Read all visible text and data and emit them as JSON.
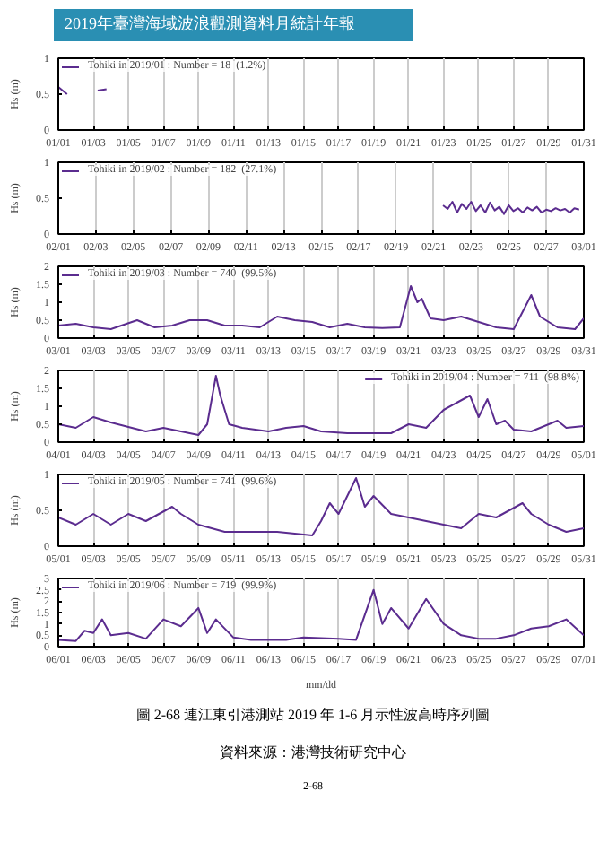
{
  "chart_data": [
    {
      "type": "line",
      "title": "2019年臺灣海域波浪觀測資料月統計年報",
      "ylabel": "Hs (m)",
      "legend": "top left",
      "grid": "x",
      "xlim": [
        "2019-01-01",
        "2019-01-31"
      ],
      "ylim": [
        0,
        1
      ],
      "yticks": [
        0,
        0.5,
        1
      ],
      "xticks": [
        {
          "value": "2019-01-01",
          "label": "01/01"
        },
        {
          "value": "2019-01-03",
          "label": "01/03"
        },
        {
          "value": "2019-01-05",
          "label": "01/05"
        },
        {
          "value": "2019-01-07",
          "label": "01/07"
        },
        {
          "value": "2019-01-09",
          "label": "01/09"
        },
        {
          "value": "2019-01-11",
          "label": "01/11"
        },
        {
          "value": "2019-01-13",
          "label": "01/13"
        },
        {
          "value": "2019-01-15",
          "label": "01/15"
        },
        {
          "value": "2019-01-17",
          "label": "01/17"
        },
        {
          "value": "2019-01-19",
          "label": "01/19"
        },
        {
          "value": "2019-01-21",
          "label": "01/21"
        },
        {
          "value": "2019-01-23",
          "label": "01/23"
        },
        {
          "value": "2019-01-25",
          "label": "01/25"
        },
        {
          "value": "2019-01-27",
          "label": "01/27"
        },
        {
          "value": "2019-01-29",
          "label": "01/29"
        },
        {
          "value": "2019-01-31",
          "label": "01/31"
        }
      ],
      "series": [
        {
          "name": "Tohiki in 2019/01 : Number = 18  (1.2%)",
          "color": "#5b2c8f",
          "x": [
            "2019-01-01T00:00",
            "2019-01-01T12:00",
            "2019-01-02T00:00",
            "2019-01-03T06:00",
            "2019-01-03T18:00"
          ],
          "values": [
            0.6,
            0.5,
            null,
            0.55,
            0.57
          ]
        }
      ]
    },
    {
      "type": "line",
      "ylabel": "Hs (m)",
      "legend": "top left",
      "grid": "x",
      "xlim": [
        "2019-02-01",
        "2019-03-01"
      ],
      "ylim": [
        0,
        1
      ],
      "yticks": [
        0,
        0.5,
        1
      ],
      "xticks": [
        {
          "value": "2019-02-01",
          "label": "02/01"
        },
        {
          "value": "2019-02-03",
          "label": "02/03"
        },
        {
          "value": "2019-02-05",
          "label": "02/05"
        },
        {
          "value": "2019-02-07",
          "label": "02/07"
        },
        {
          "value": "2019-02-09",
          "label": "02/09"
        },
        {
          "value": "2019-02-11",
          "label": "02/11"
        },
        {
          "value": "2019-02-13",
          "label": "02/13"
        },
        {
          "value": "2019-02-15",
          "label": "02/15"
        },
        {
          "value": "2019-02-17",
          "label": "02/17"
        },
        {
          "value": "2019-02-19",
          "label": "02/19"
        },
        {
          "value": "2019-02-21",
          "label": "02/21"
        },
        {
          "value": "2019-02-23",
          "label": "02/23"
        },
        {
          "value": "2019-02-25",
          "label": "02/25"
        },
        {
          "value": "2019-02-27",
          "label": "02/27"
        },
        {
          "value": "2019-03-01",
          "label": "03/01"
        }
      ],
      "series": [
        {
          "name": "Tohiki in 2019/02 : Number = 182  (27.1%)",
          "color": "#5b2c8f",
          "x": [
            "2019-02-21T12:00",
            "2019-02-21T18:00",
            "2019-02-22T00:00",
            "2019-02-22T06:00",
            "2019-02-22T12:00",
            "2019-02-22T18:00",
            "2019-02-23T00:00",
            "2019-02-23T06:00",
            "2019-02-23T12:00",
            "2019-02-23T18:00",
            "2019-02-24T00:00",
            "2019-02-24T06:00",
            "2019-02-24T12:00",
            "2019-02-24T18:00",
            "2019-02-25T00:00",
            "2019-02-25T06:00",
            "2019-02-25T12:00",
            "2019-02-25T18:00",
            "2019-02-26T00:00",
            "2019-02-26T06:00",
            "2019-02-26T12:00",
            "2019-02-26T18:00",
            "2019-02-27T00:00",
            "2019-02-27T06:00",
            "2019-02-27T12:00",
            "2019-02-27T18:00",
            "2019-02-28T00:00",
            "2019-02-28T06:00",
            "2019-02-28T12:00",
            "2019-02-28T18:00"
          ],
          "values": [
            0.4,
            0.35,
            0.45,
            0.3,
            0.42,
            0.35,
            0.45,
            0.32,
            0.4,
            0.3,
            0.44,
            0.33,
            0.38,
            0.28,
            0.4,
            0.32,
            0.36,
            0.3,
            0.37,
            0.33,
            0.38,
            0.3,
            0.34,
            0.32,
            0.36,
            0.33,
            0.35,
            0.3,
            0.36,
            0.34
          ]
        }
      ]
    },
    {
      "type": "line",
      "ylabel": "Hs (m)",
      "legend": "top left",
      "grid": "x",
      "xlim": [
        "2019-03-01",
        "2019-03-31"
      ],
      "ylim": [
        0,
        2
      ],
      "yticks": [
        0,
        0.5,
        1,
        1.5,
        2
      ],
      "xticks": [
        {
          "value": "2019-03-01",
          "label": "03/01"
        },
        {
          "value": "2019-03-03",
          "label": "03/03"
        },
        {
          "value": "2019-03-05",
          "label": "03/05"
        },
        {
          "value": "2019-03-07",
          "label": "03/07"
        },
        {
          "value": "2019-03-09",
          "label": "03/09"
        },
        {
          "value": "2019-03-11",
          "label": "03/11"
        },
        {
          "value": "2019-03-13",
          "label": "03/13"
        },
        {
          "value": "2019-03-15",
          "label": "03/15"
        },
        {
          "value": "2019-03-17",
          "label": "03/17"
        },
        {
          "value": "2019-03-19",
          "label": "03/19"
        },
        {
          "value": "2019-03-21",
          "label": "03/21"
        },
        {
          "value": "2019-03-23",
          "label": "03/23"
        },
        {
          "value": "2019-03-25",
          "label": "03/25"
        },
        {
          "value": "2019-03-27",
          "label": "03/27"
        },
        {
          "value": "2019-03-29",
          "label": "03/29"
        },
        {
          "value": "2019-03-31",
          "label": "03/31"
        }
      ],
      "series": [
        {
          "name": "Tohiki in 2019/03 : Number = 740  (99.5%)",
          "color": "#5b2c8f",
          "x": [
            "2019-03-01T00:00",
            "2019-03-02T00:00",
            "2019-03-03T00:00",
            "2019-03-04T00:00",
            "2019-03-05T12:00",
            "2019-03-06T12:00",
            "2019-03-07T12:00",
            "2019-03-08T12:00",
            "2019-03-09T12:00",
            "2019-03-10T12:00",
            "2019-03-11T12:00",
            "2019-03-12T12:00",
            "2019-03-13T12:00",
            "2019-03-14T12:00",
            "2019-03-15T12:00",
            "2019-03-16T12:00",
            "2019-03-17T12:00",
            "2019-03-18T12:00",
            "2019-03-19T12:00",
            "2019-03-20T12:00",
            "2019-03-21T03:00",
            "2019-03-21T12:00",
            "2019-03-21T18:00",
            "2019-03-22T06:00",
            "2019-03-23T00:00",
            "2019-03-24T00:00",
            "2019-03-25T00:00",
            "2019-03-26T00:00",
            "2019-03-27T00:00",
            "2019-03-28T00:00",
            "2019-03-28T12:00",
            "2019-03-29T12:00",
            "2019-03-30T12:00",
            "2019-03-31T00:00"
          ],
          "values": [
            0.35,
            0.4,
            0.3,
            0.25,
            0.5,
            0.3,
            0.35,
            0.5,
            0.5,
            0.35,
            0.35,
            0.3,
            0.6,
            0.5,
            0.45,
            0.3,
            0.4,
            0.3,
            0.28,
            0.3,
            1.45,
            1.0,
            1.1,
            0.55,
            0.5,
            0.6,
            0.45,
            0.3,
            0.25,
            1.2,
            0.6,
            0.3,
            0.25,
            0.55
          ]
        }
      ]
    },
    {
      "type": "line",
      "ylabel": "Hs (m)",
      "legend": "top right",
      "grid": "x",
      "xlim": [
        "2019-04-01",
        "2019-05-01"
      ],
      "ylim": [
        0,
        2
      ],
      "yticks": [
        0,
        0.5,
        1,
        1.5,
        2
      ],
      "xticks": [
        {
          "value": "2019-04-01",
          "label": "04/01"
        },
        {
          "value": "2019-04-03",
          "label": "04/03"
        },
        {
          "value": "2019-04-05",
          "label": "04/05"
        },
        {
          "value": "2019-04-07",
          "label": "04/07"
        },
        {
          "value": "2019-04-09",
          "label": "04/09"
        },
        {
          "value": "2019-04-11",
          "label": "04/11"
        },
        {
          "value": "2019-04-13",
          "label": "04/13"
        },
        {
          "value": "2019-04-15",
          "label": "04/15"
        },
        {
          "value": "2019-04-17",
          "label": "04/17"
        },
        {
          "value": "2019-04-19",
          "label": "04/19"
        },
        {
          "value": "2019-04-21",
          "label": "04/21"
        },
        {
          "value": "2019-04-23",
          "label": "04/23"
        },
        {
          "value": "2019-04-25",
          "label": "04/25"
        },
        {
          "value": "2019-04-27",
          "label": "04/27"
        },
        {
          "value": "2019-04-29",
          "label": "04/29"
        },
        {
          "value": "2019-05-01",
          "label": "05/01"
        }
      ],
      "series": [
        {
          "name": "Tohiki in 2019/04 : Number = 711  (98.8%)",
          "color": "#5b2c8f",
          "x": [
            "2019-04-01T00:00",
            "2019-04-02T00:00",
            "2019-04-03T00:00",
            "2019-04-04T00:00",
            "2019-04-06T00:00",
            "2019-04-07T00:00",
            "2019-04-09T00:00",
            "2019-04-09T12:00",
            "2019-04-10T00:00",
            "2019-04-10T06:00",
            "2019-04-10T18:00",
            "2019-04-11T12:00",
            "2019-04-13T00:00",
            "2019-04-14T00:00",
            "2019-04-15T00:00",
            "2019-04-16T00:00",
            "2019-04-17T12:00",
            "2019-04-20T00:00",
            "2019-04-21T00:00",
            "2019-04-22T00:00",
            "2019-04-23T00:00",
            "2019-04-24T12:00",
            "2019-04-25T00:00",
            "2019-04-25T12:00",
            "2019-04-26T00:00",
            "2019-04-26T12:00",
            "2019-04-27T00:00",
            "2019-04-28T00:00",
            "2019-04-29T12:00",
            "2019-04-30T00:00",
            "2019-05-01T00:00"
          ],
          "values": [
            0.5,
            0.4,
            0.7,
            0.55,
            0.3,
            0.4,
            0.2,
            0.5,
            1.85,
            1.3,
            0.5,
            0.4,
            0.3,
            0.4,
            0.45,
            0.3,
            0.25,
            0.25,
            0.5,
            0.4,
            0.9,
            1.3,
            0.7,
            1.2,
            0.5,
            0.6,
            0.35,
            0.3,
            0.6,
            0.4,
            0.45
          ]
        }
      ]
    },
    {
      "type": "line",
      "ylabel": "Hs (m)",
      "legend": "top left",
      "grid": "x",
      "xlim": [
        "2019-05-01",
        "2019-05-31"
      ],
      "ylim": [
        0,
        1
      ],
      "yticks": [
        0,
        0.5,
        1
      ],
      "xticks": [
        {
          "value": "2019-05-01",
          "label": "05/01"
        },
        {
          "value": "2019-05-03",
          "label": "05/03"
        },
        {
          "value": "2019-05-05",
          "label": "05/05"
        },
        {
          "value": "2019-05-07",
          "label": "05/07"
        },
        {
          "value": "2019-05-09",
          "label": "05/09"
        },
        {
          "value": "2019-05-11",
          "label": "05/11"
        },
        {
          "value": "2019-05-13",
          "label": "05/13"
        },
        {
          "value": "2019-05-15",
          "label": "05/15"
        },
        {
          "value": "2019-05-17",
          "label": "05/17"
        },
        {
          "value": "2019-05-19",
          "label": "05/19"
        },
        {
          "value": "2019-05-21",
          "label": "05/21"
        },
        {
          "value": "2019-05-23",
          "label": "05/23"
        },
        {
          "value": "2019-05-25",
          "label": "05/25"
        },
        {
          "value": "2019-05-27",
          "label": "05/27"
        },
        {
          "value": "2019-05-29",
          "label": "05/29"
        },
        {
          "value": "2019-05-31",
          "label": "05/31"
        }
      ],
      "series": [
        {
          "name": "Tohiki in 2019/05 : Number = 741  (99.6%)",
          "color": "#5b2c8f",
          "x": [
            "2019-05-01T00:00",
            "2019-05-02T00:00",
            "2019-05-03T00:00",
            "2019-05-04T00:00",
            "2019-05-05T00:00",
            "2019-05-06T00:00",
            "2019-05-07T12:00",
            "2019-05-08T00:00",
            "2019-05-09T00:00",
            "2019-05-10T12:00",
            "2019-05-12T00:00",
            "2019-05-13T12:00",
            "2019-05-15T12:00",
            "2019-05-16T00:00",
            "2019-05-16T12:00",
            "2019-05-17T00:00",
            "2019-05-18T00:00",
            "2019-05-18T12:00",
            "2019-05-19T00:00",
            "2019-05-20T00:00",
            "2019-05-21T00:00",
            "2019-05-23T00:00",
            "2019-05-24T00:00",
            "2019-05-25T00:00",
            "2019-05-26T00:00",
            "2019-05-27T12:00",
            "2019-05-28T00:00",
            "2019-05-29T00:00",
            "2019-05-30T00:00",
            "2019-05-31T00:00"
          ],
          "values": [
            0.4,
            0.3,
            0.45,
            0.3,
            0.45,
            0.35,
            0.55,
            0.45,
            0.3,
            0.2,
            0.2,
            0.2,
            0.15,
            0.35,
            0.6,
            0.45,
            0.95,
            0.55,
            0.7,
            0.45,
            0.4,
            0.3,
            0.25,
            0.45,
            0.4,
            0.6,
            0.45,
            0.3,
            0.2,
            0.25
          ]
        }
      ]
    },
    {
      "type": "line",
      "ylabel": "Hs (m)",
      "xlabel": "mm/dd",
      "legend": "top left",
      "grid": "x",
      "xlim": [
        "2019-06-01",
        "2019-07-01"
      ],
      "ylim": [
        0,
        3
      ],
      "yticks": [
        0,
        0.5,
        1,
        1.5,
        2,
        2.5,
        3
      ],
      "xticks": [
        {
          "value": "2019-06-01",
          "label": "06/01"
        },
        {
          "value": "2019-06-03",
          "label": "06/03"
        },
        {
          "value": "2019-06-05",
          "label": "06/05"
        },
        {
          "value": "2019-06-07",
          "label": "06/07"
        },
        {
          "value": "2019-06-09",
          "label": "06/09"
        },
        {
          "value": "2019-06-11",
          "label": "06/11"
        },
        {
          "value": "2019-06-13",
          "label": "06/13"
        },
        {
          "value": "2019-06-15",
          "label": "06/15"
        },
        {
          "value": "2019-06-17",
          "label": "06/17"
        },
        {
          "value": "2019-06-19",
          "label": "06/19"
        },
        {
          "value": "2019-06-21",
          "label": "06/21"
        },
        {
          "value": "2019-06-23",
          "label": "06/23"
        },
        {
          "value": "2019-06-25",
          "label": "06/25"
        },
        {
          "value": "2019-06-27",
          "label": "06/27"
        },
        {
          "value": "2019-06-29",
          "label": "06/29"
        },
        {
          "value": "2019-07-01",
          "label": "07/01"
        }
      ],
      "annotations": [
        "圖 2-68 連江東引港測站 2019 年 1-6 月示性波高時序列圖",
        "資料來源：港灣技術研究中心",
        "2-68"
      ],
      "series": [
        {
          "name": "Tohiki in 2019/06 : Number = 719  (99.9%)",
          "color": "#5b2c8f",
          "x": [
            "2019-06-01T00:00",
            "2019-06-02T00:00",
            "2019-06-02T12:00",
            "2019-06-03T00:00",
            "2019-06-03T12:00",
            "2019-06-04T00:00",
            "2019-06-05T00:00",
            "2019-06-06T00:00",
            "2019-06-07T00:00",
            "2019-06-08T00:00",
            "2019-06-09T00:00",
            "2019-06-09T12:00",
            "2019-06-10T00:00",
            "2019-06-11T00:00",
            "2019-06-12T00:00",
            "2019-06-14T00:00",
            "2019-06-15T00:00",
            "2019-06-17T00:00",
            "2019-06-18T00:00",
            "2019-06-19T00:00",
            "2019-06-19T12:00",
            "2019-06-20T00:00",
            "2019-06-21T00:00",
            "2019-06-22T00:00",
            "2019-06-23T00:00",
            "2019-06-24T00:00",
            "2019-06-25T00:00",
            "2019-06-26T00:00",
            "2019-06-27T00:00",
            "2019-06-28T00:00",
            "2019-06-29T00:00",
            "2019-06-30T00:00",
            "2019-07-01T00:00"
          ],
          "values": [
            0.3,
            0.25,
            0.7,
            0.6,
            1.2,
            0.5,
            0.6,
            0.35,
            1.2,
            0.9,
            1.7,
            0.6,
            1.2,
            0.4,
            0.3,
            0.3,
            0.4,
            0.35,
            0.3,
            2.5,
            1.0,
            1.7,
            0.8,
            2.1,
            1.0,
            0.5,
            0.35,
            0.35,
            0.5,
            0.8,
            0.9,
            1.2,
            0.5
          ]
        }
      ]
    }
  ]
}
